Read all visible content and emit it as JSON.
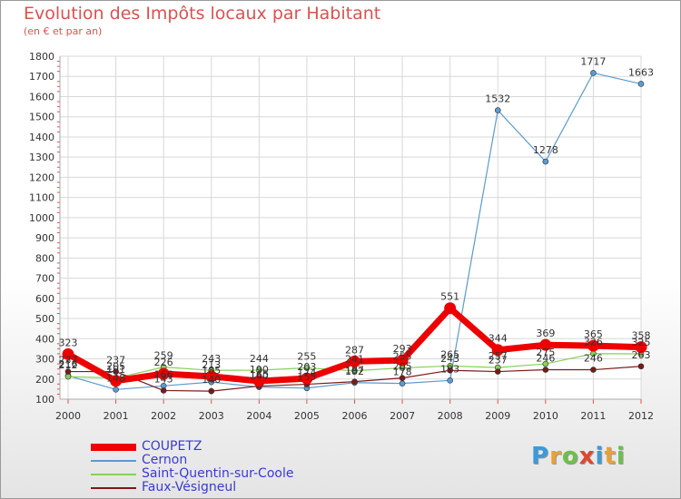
{
  "title": "Evolution des Impôts locaux par Habitant",
  "subtitle": "(en € et par an)",
  "logo": {
    "letters": [
      "P",
      "r",
      "o",
      "x",
      "i",
      "t",
      "i"
    ],
    "colors": [
      "#3b9ad9",
      "#e8a13a",
      "#6cc04a",
      "#e0462c",
      "#3b9ad9",
      "#e8a13a",
      "#6cc04a"
    ]
  },
  "chart_data": {
    "type": "line",
    "categories": [
      "2000",
      "2001",
      "2002",
      "2003",
      "2004",
      "2005",
      "2006",
      "2007",
      "2008",
      "2009",
      "2010",
      "2011",
      "2012"
    ],
    "ylim": [
      100,
      1800
    ],
    "yticks": [
      "100",
      "200",
      "300",
      "400",
      "500",
      "600",
      "700",
      "800",
      "900",
      "1000",
      "1100",
      "1200",
      "1300",
      "1400",
      "1500",
      "1600",
      "1700",
      "1800"
    ],
    "grid": true,
    "series": [
      {
        "name": "Cernon",
        "color": "#5b9bd1",
        "width": 1.2,
        "values": [
          216,
          148,
          166,
          185,
          160,
          155,
          182,
          178,
          193,
          1532,
          1278,
          1717,
          1663
        ],
        "labels": [
          "216",
          "148",
          "166",
          "185",
          "160",
          "155",
          "182",
          "178",
          "193",
          "1532",
          "1278",
          "1717",
          "1663"
        ]
      },
      {
        "name": "Saint-Quentin-sur-Coole",
        "color": "#86d05b",
        "width": 1.2,
        "values": [
          212,
          205,
          259,
          243,
          244,
          255,
          241,
          255,
          265,
          257,
          275,
          326,
          325
        ],
        "labels": [
          "212",
          "205",
          "259",
          "243",
          "244",
          "255",
          "241",
          "255",
          "265",
          "257",
          "275",
          "326",
          "325"
        ]
      },
      {
        "name": "Faux-Vésigneul",
        "color": "#7a1a1a",
        "width": 1.2,
        "values": [
          237,
          237,
          143,
          140,
          165,
          174,
          187,
          205,
          243,
          237,
          246,
          246,
          263
        ],
        "labels": [
          "237",
          "237",
          "143",
          "140",
          "165",
          "174",
          "187",
          "205",
          "243",
          "237",
          "246",
          "246",
          "263"
        ]
      },
      {
        "name": "COUPETZ",
        "color": "#ee0000",
        "width": 7,
        "values": [
          323,
          191,
          226,
          213,
          190,
          203,
          287,
          293,
          551,
          344,
          369,
          365,
          358
        ],
        "labels": [
          "323",
          "191",
          "226",
          "213",
          "190",
          "203",
          "287",
          "293",
          "551",
          "344",
          "369",
          "365",
          "358"
        ]
      }
    ],
    "legend_order": [
      "COUPETZ",
      "Cernon",
      "Saint-Quentin-sur-Coole",
      "Faux-Vésigneul"
    ]
  }
}
